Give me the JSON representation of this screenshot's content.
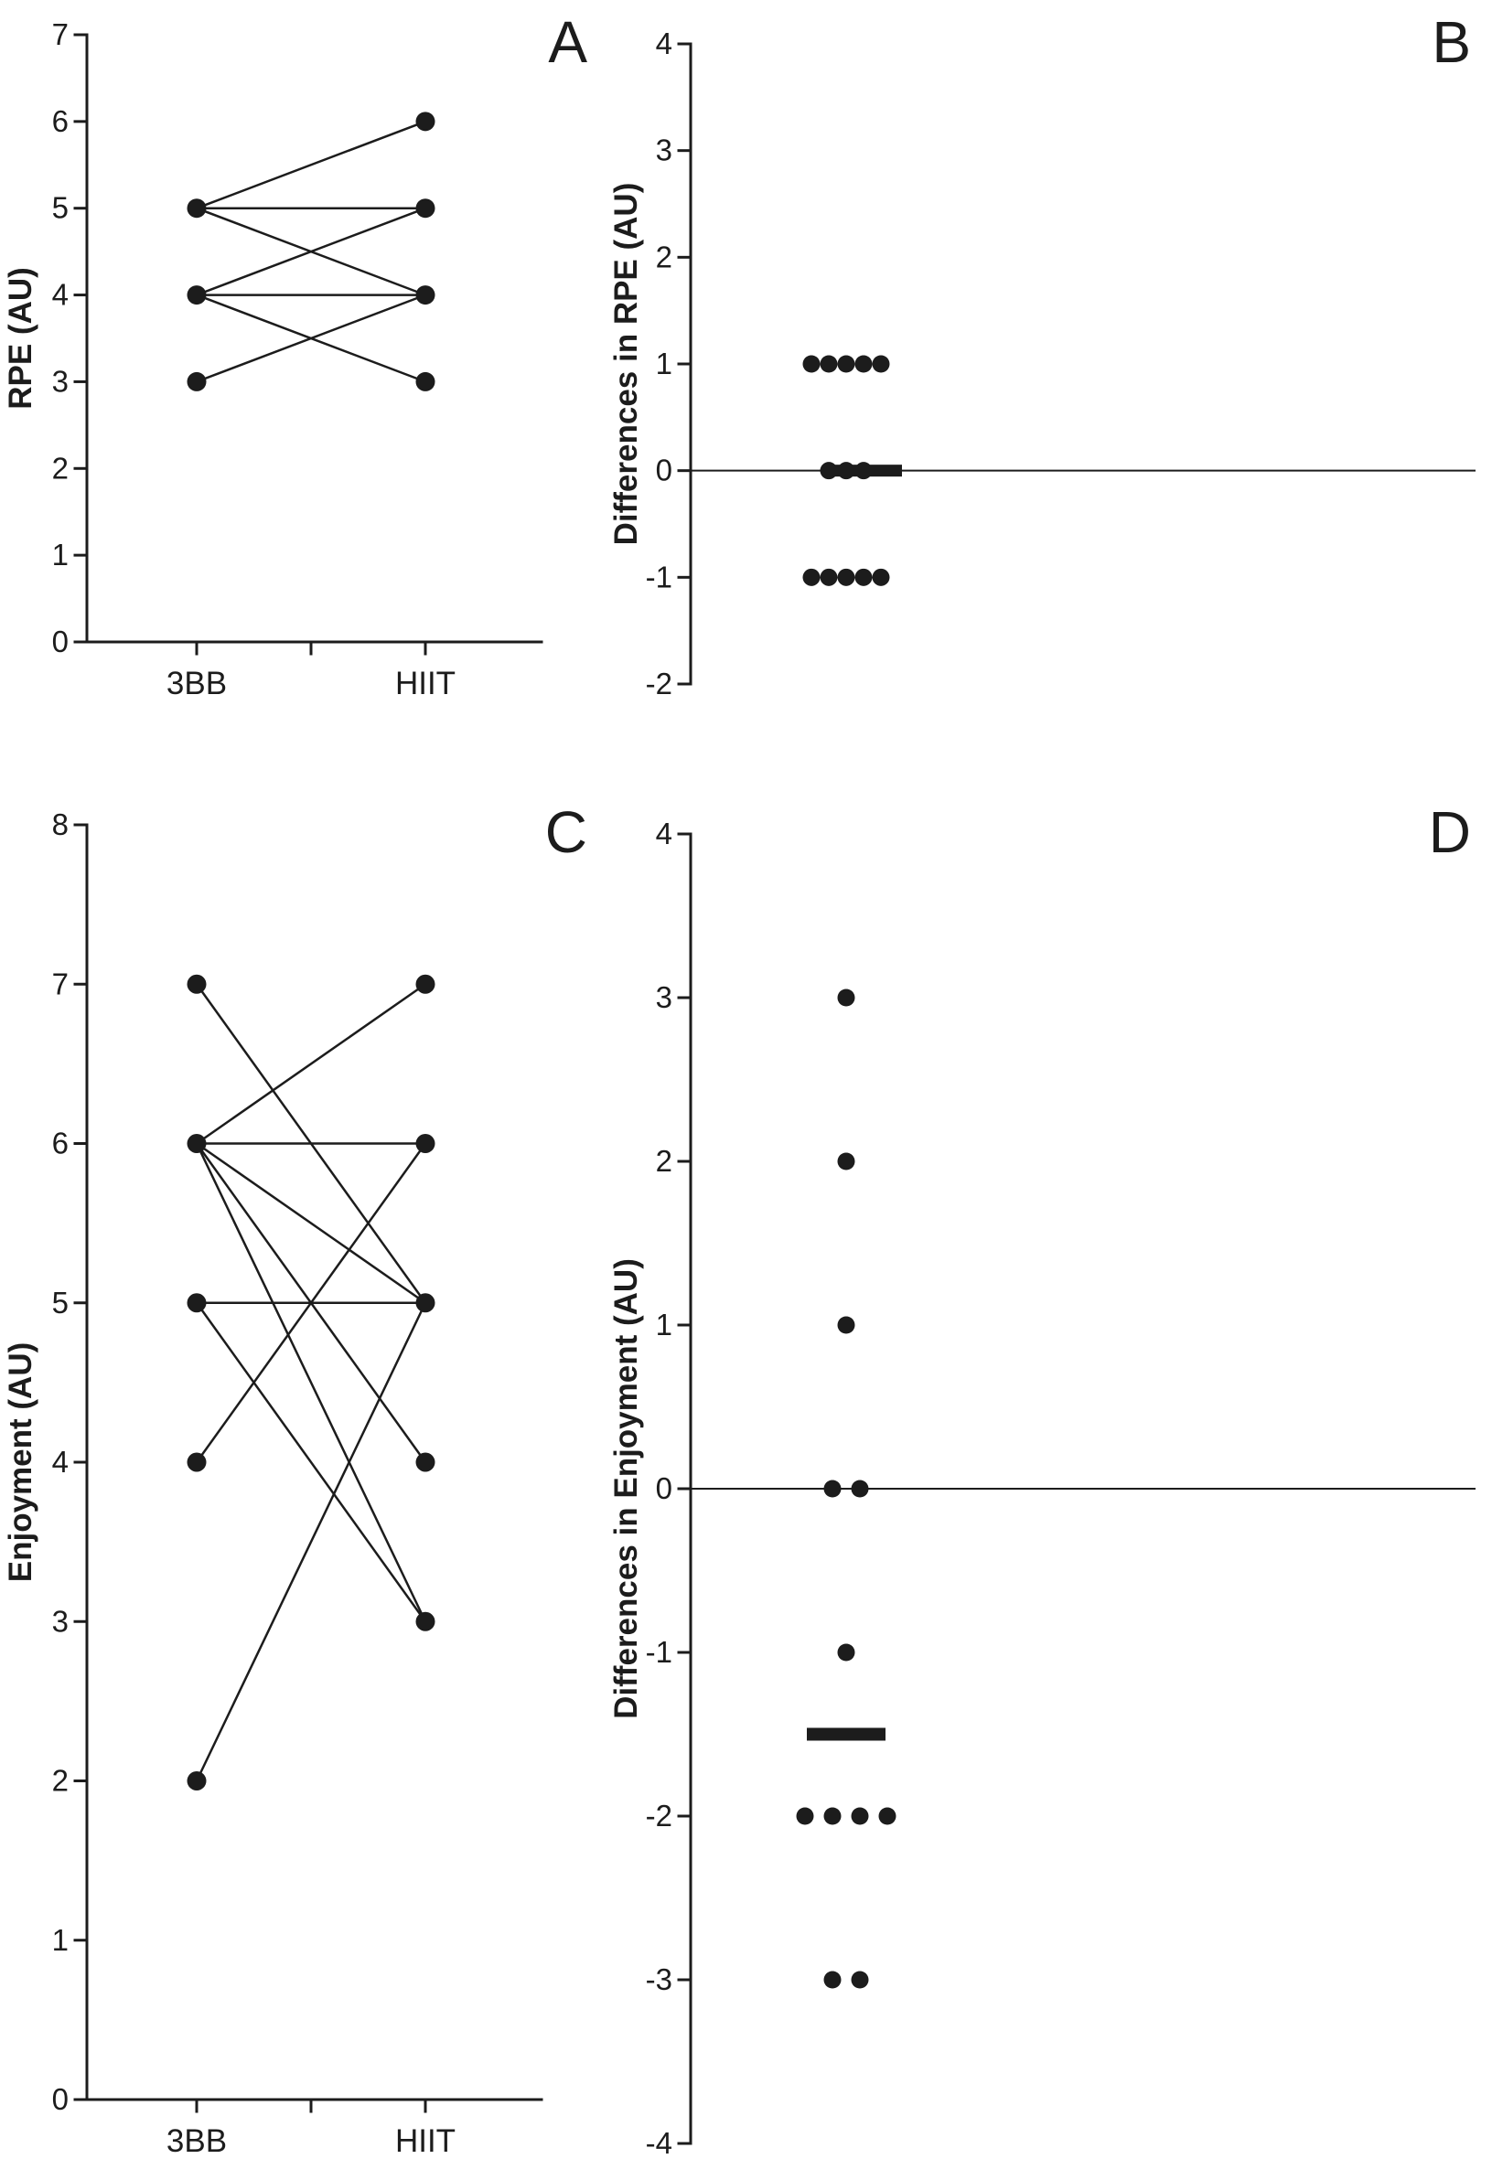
{
  "page": {
    "background": "#ffffff",
    "ink": "#1c1c1c"
  },
  "chart_data": [
    {
      "id": "A",
      "type": "paired-line",
      "panel_label": "A",
      "ylabel": "RPE (AU)",
      "categories": [
        "3BB",
        "HIIT"
      ],
      "ylim": [
        0,
        7
      ],
      "ytick_step": 1,
      "grid": false,
      "pairs": [
        [
          5,
          6
        ],
        [
          5,
          5
        ],
        [
          5,
          4
        ],
        [
          4,
          5
        ],
        [
          4,
          4
        ],
        [
          4,
          3
        ],
        [
          3,
          4
        ]
      ]
    },
    {
      "id": "B",
      "type": "dot-diff",
      "panel_label": "B",
      "ylabel": "Differences in RPE (AU)",
      "ylim": [
        -2,
        4
      ],
      "ytick_step": 1,
      "grid": false,
      "zero_line": true,
      "groups": [
        {
          "value": 1,
          "count": 5
        },
        {
          "value": 0,
          "count": 3
        },
        {
          "value": -1,
          "count": 5
        }
      ],
      "median": 0
    },
    {
      "id": "C",
      "type": "paired-line",
      "panel_label": "C",
      "ylabel": "Enjoyment (AU)",
      "categories": [
        "3BB",
        "HIIT"
      ],
      "ylim": [
        0,
        8
      ],
      "ytick_step": 1,
      "grid": false,
      "pairs": [
        [
          7,
          5
        ],
        [
          6,
          7
        ],
        [
          6,
          6
        ],
        [
          6,
          5
        ],
        [
          6,
          4
        ],
        [
          6,
          3
        ],
        [
          5,
          5
        ],
        [
          5,
          3
        ],
        [
          4,
          6
        ],
        [
          2,
          5
        ]
      ]
    },
    {
      "id": "D",
      "type": "dot-diff",
      "panel_label": "D",
      "ylabel": "Differences in Enjoyment (AU)",
      "ylim": [
        -4,
        4
      ],
      "ytick_step": 1,
      "grid": false,
      "zero_line": true,
      "groups": [
        {
          "value": 3,
          "count": 1
        },
        {
          "value": 2,
          "count": 1
        },
        {
          "value": 1,
          "count": 1
        },
        {
          "value": 0,
          "count": 2
        },
        {
          "value": -1,
          "count": 1
        },
        {
          "value": -2,
          "count": 4
        },
        {
          "value": -3,
          "count": 2
        }
      ],
      "median": -1.5
    }
  ]
}
